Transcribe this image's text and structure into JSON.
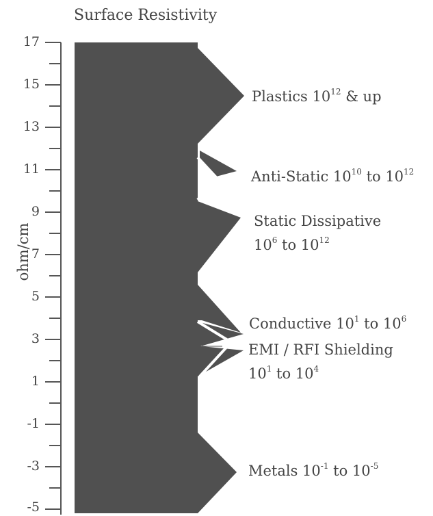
{
  "title": "Surface Resistivity",
  "axis": {
    "label": "ohm/cm",
    "ticks": [
      "17",
      "15",
      "13",
      "11",
      "9",
      "7",
      "5",
      "3",
      "1",
      "-1",
      "-3",
      "-5"
    ]
  },
  "categories": [
    {
      "line1_pre": "Plastics 10",
      "line1_sup": "12",
      "line1_post": " & up"
    },
    {
      "line1_pre": "Anti-Static 10",
      "line1_sup": "10",
      "line1_mid": " to 10",
      "line1_sup2": "12"
    },
    {
      "line1": "Static Dissipative",
      "line2_pre": "10",
      "line2_sup": "6",
      "line2_mid": " to 10",
      "line2_sup2": "12"
    },
    {
      "line1_pre": "Conductive 10",
      "line1_sup": "1",
      "line1_mid": " to 10",
      "line1_sup2": "6"
    },
    {
      "line1": "EMI / RFI Shielding",
      "line2_pre": "10",
      "line2_sup": "1",
      "line2_mid": " to 10",
      "line2_sup2": "4"
    },
    {
      "line1_pre": "Metals 10",
      "line1_sup": "-1",
      "line1_mid": " to 10",
      "line1_sup2": "-5"
    }
  ],
  "colors": {
    "fill": "#505050",
    "text": "#444444",
    "axis": "#555555"
  }
}
